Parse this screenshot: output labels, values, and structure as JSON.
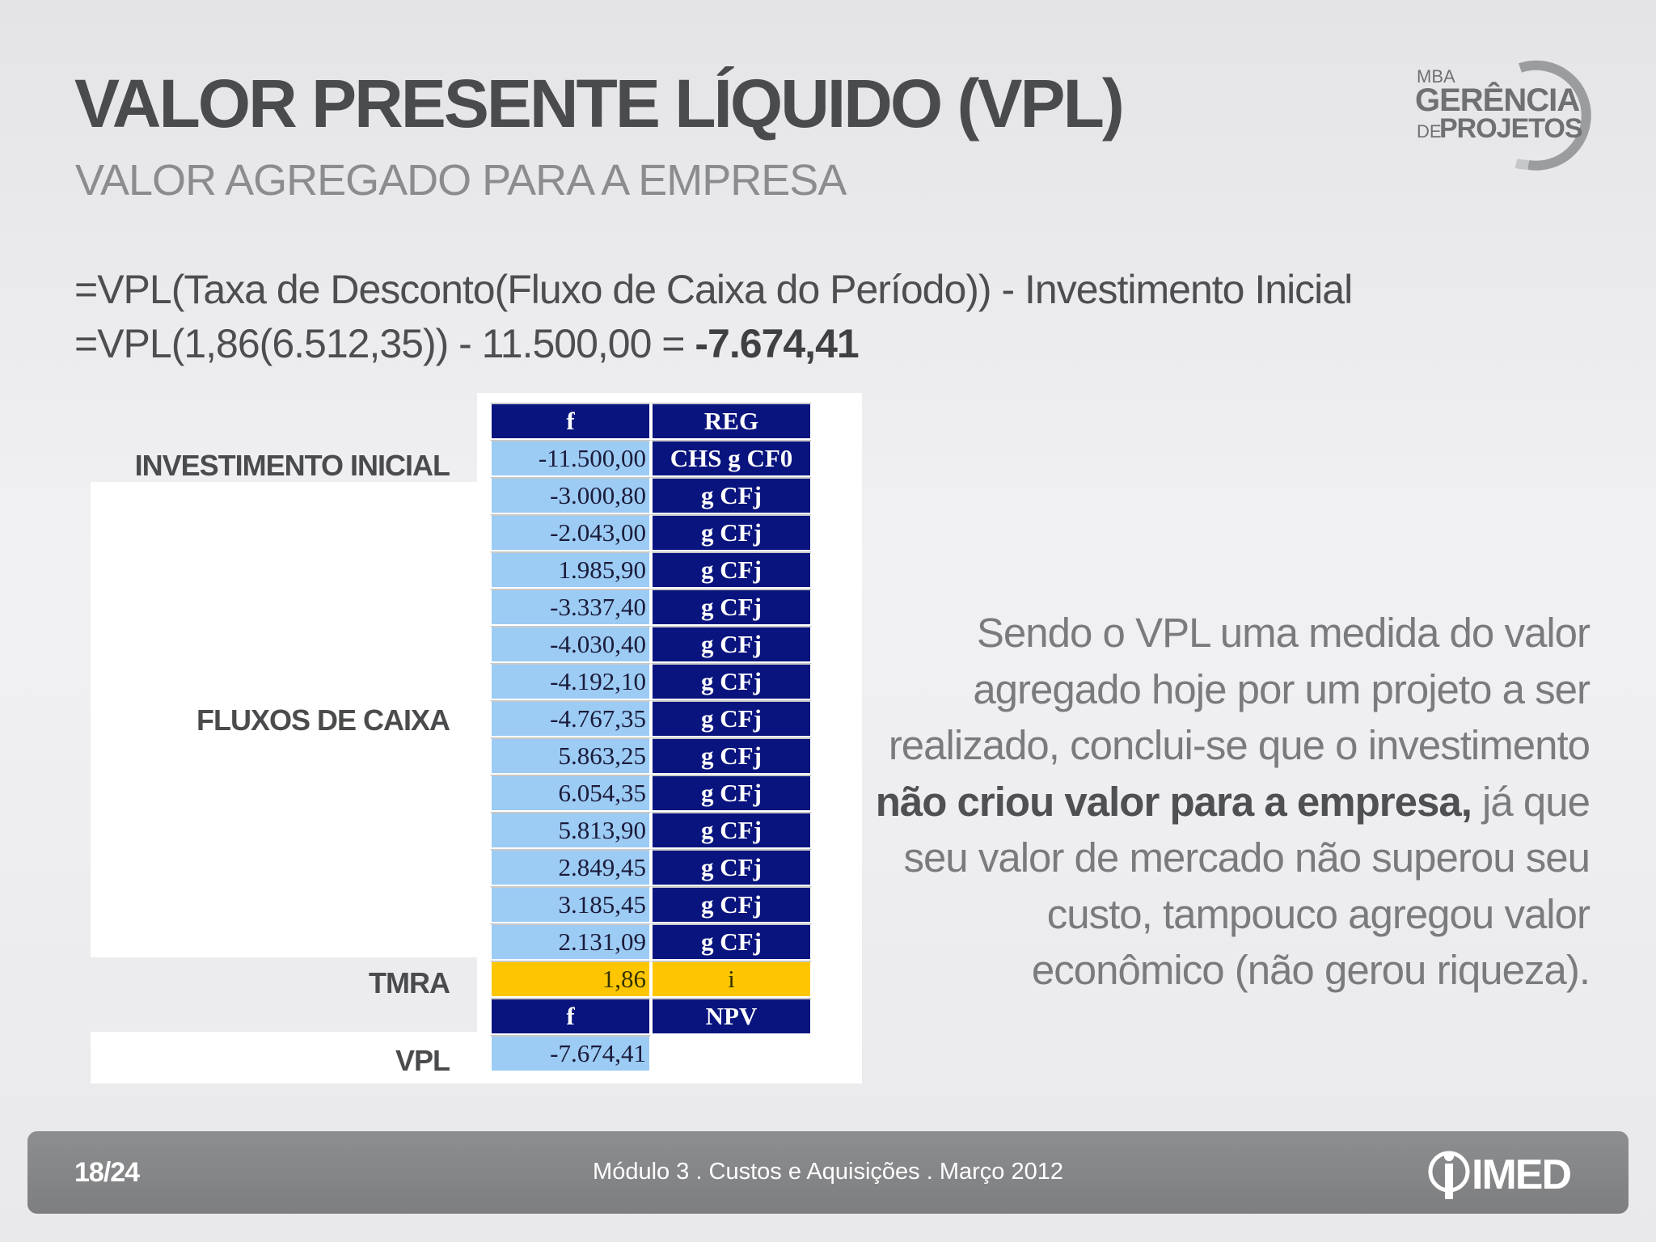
{
  "header": {
    "title": "VALOR PRESENTE LÍQUIDO (VPL)",
    "subtitle": "VALOR AGREGADO PARA A EMPRESA"
  },
  "logo": {
    "mba": "MBA",
    "line1": "GERÊNCIA",
    "de": "DE",
    "line2": "PROJETOS"
  },
  "formula": {
    "line1": "=VPL(Taxa de Desconto(Fluxo de Caixa do Período)) - Investimento Inicial",
    "line2_prefix": "=VPL(1,86(6.512,35)) - 11.500,00 = ",
    "line2_result": "-7.674,41"
  },
  "labels": {
    "initial_investment": "INVESTIMENTO INICIAL",
    "cash_flows": "FLUXOS DE CAIXA",
    "tmra": "TMRA",
    "vpl": "VPL"
  },
  "calc_table": {
    "header": [
      "f",
      "REG"
    ],
    "initial_row": {
      "value": "-11.500,00",
      "key": "CHS g CF0"
    },
    "flows": [
      {
        "value": "-3.000,80",
        "key": "g CFj"
      },
      {
        "value": "-2.043,00",
        "key": "g CFj"
      },
      {
        "value": "1.985,90",
        "key": "g CFj"
      },
      {
        "value": "-3.337,40",
        "key": "g CFj"
      },
      {
        "value": "-4.030,40",
        "key": "g CFj"
      },
      {
        "value": "-4.192,10",
        "key": "g CFj"
      },
      {
        "value": "-4.767,35",
        "key": "g CFj"
      },
      {
        "value": "5.863,25",
        "key": "g CFj"
      },
      {
        "value": "6.054,35",
        "key": "g CFj"
      },
      {
        "value": "5.813,90",
        "key": "g CFj"
      },
      {
        "value": "2.849,45",
        "key": "g CFj"
      },
      {
        "value": "3.185,45",
        "key": "g CFj"
      },
      {
        "value": "2.131,09",
        "key": "g CFj"
      }
    ],
    "tmra_row": {
      "value": "1,86",
      "key": "i"
    },
    "npv_header": [
      "f",
      "NPV"
    ],
    "result": "-7.674,41"
  },
  "conclusion": {
    "part1": "Sendo o VPL uma medida do valor agregado hoje por um projeto a ser realizado, conclui-se que o investimento ",
    "bold": "não criou valor para a empresa,",
    "part2": " já que seu valor de mercado não superou seu custo, tampouco agregou valor econômico (não gerou riqueza)."
  },
  "footer": {
    "page": "18/24",
    "center": "Módulo 3 . Custos e Aquisições . Março 2012",
    "brand": "IMED"
  },
  "colors": {
    "table_header": "#0a147e",
    "table_value": "#9ccbf4",
    "table_highlight": "#fec600",
    "footer_bar": "#858688"
  },
  "icons": {
    "brand_logo": "mba-gerencia-de-projetos-logo",
    "footer_logo": "imed-logo-icon"
  }
}
